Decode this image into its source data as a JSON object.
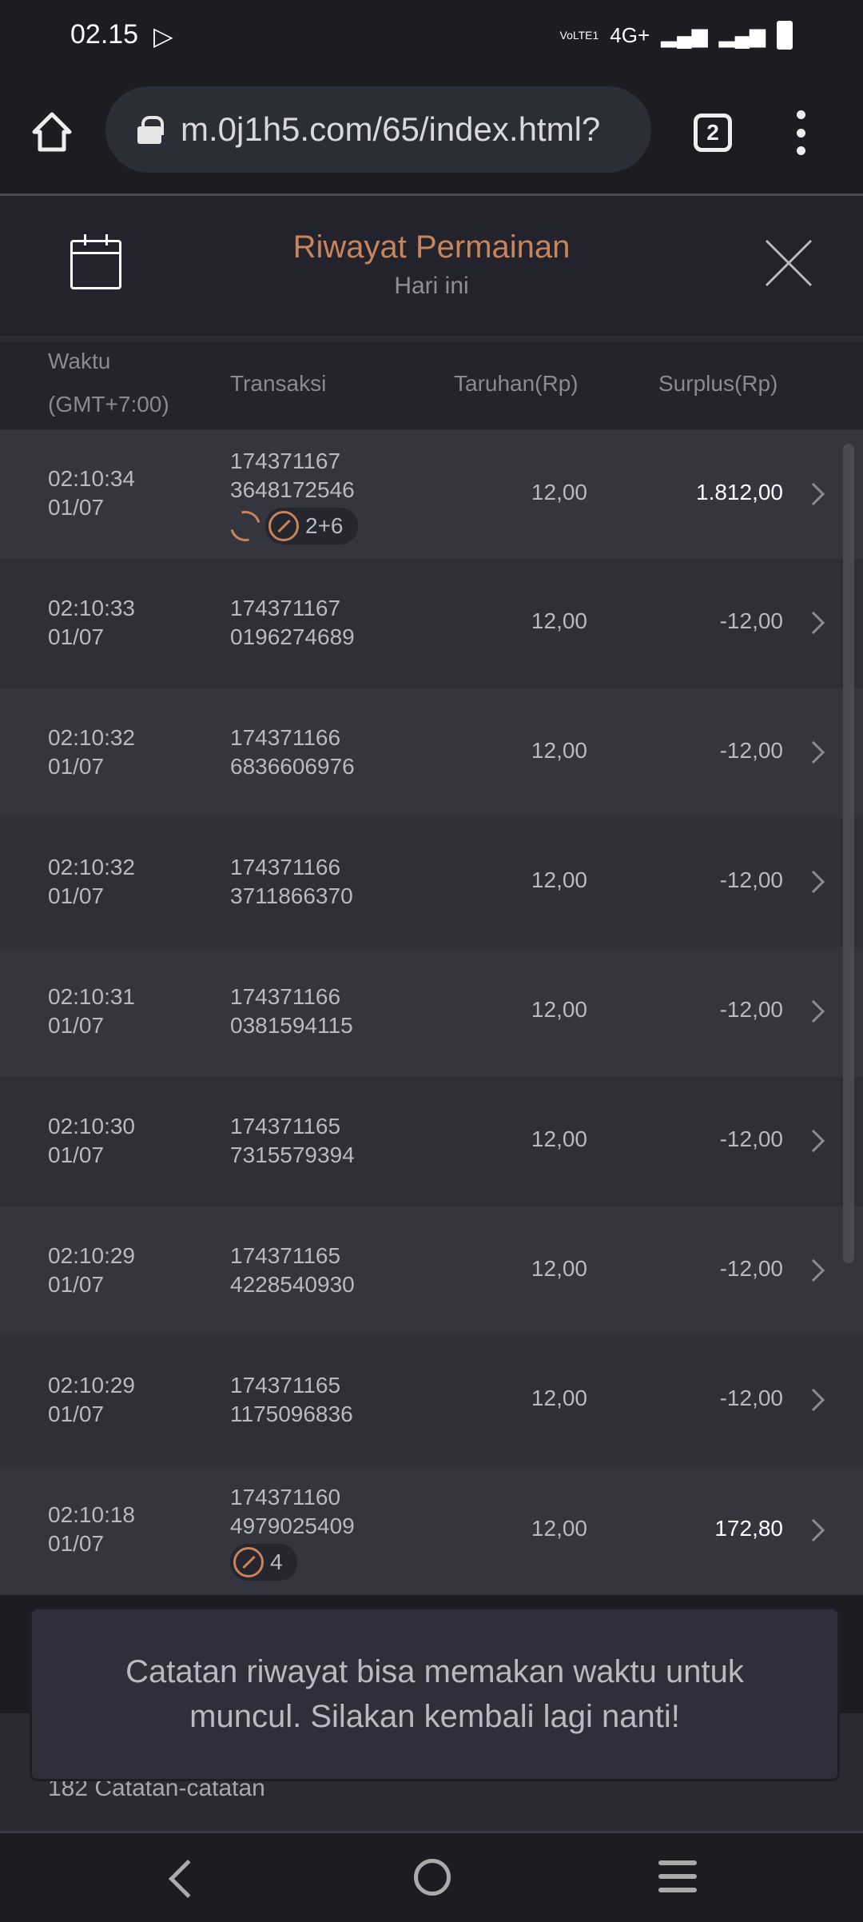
{
  "status_bar": {
    "time": "02.15",
    "network": "4G+",
    "volte": "VoLTE1"
  },
  "browser": {
    "url": "m.0j1h5.com/65/index.html?",
    "tab_count": "2"
  },
  "header": {
    "title": "Riwayat Permainan",
    "subtitle": "Hari ini"
  },
  "columns": {
    "time": "Waktu",
    "timezone": "(GMT+7:00)",
    "transaction": "Transaksi",
    "bet": "Taruhan(Rp)",
    "surplus": "Surplus(Rp)"
  },
  "rows": [
    {
      "time": "02:10:34",
      "date": "01/07",
      "tx1": "174371167",
      "tx2": "3648172546",
      "bet": "12,00",
      "surplus": "1.812,00",
      "badge": "2+6",
      "refresh": true
    },
    {
      "time": "02:10:33",
      "date": "01/07",
      "tx1": "174371167",
      "tx2": "0196274689",
      "bet": "12,00",
      "surplus": "-12,00"
    },
    {
      "time": "02:10:32",
      "date": "01/07",
      "tx1": "174371166",
      "tx2": "6836606976",
      "bet": "12,00",
      "surplus": "-12,00"
    },
    {
      "time": "02:10:32",
      "date": "01/07",
      "tx1": "174371166",
      "tx2": "3711866370",
      "bet": "12,00",
      "surplus": "-12,00"
    },
    {
      "time": "02:10:31",
      "date": "01/07",
      "tx1": "174371166",
      "tx2": "0381594115",
      "bet": "12,00",
      "surplus": "-12,00"
    },
    {
      "time": "02:10:30",
      "date": "01/07",
      "tx1": "174371165",
      "tx2": "7315579394",
      "bet": "12,00",
      "surplus": "-12,00"
    },
    {
      "time": "02:10:29",
      "date": "01/07",
      "tx1": "174371165",
      "tx2": "4228540930",
      "bet": "12,00",
      "surplus": "-12,00"
    },
    {
      "time": "02:10:29",
      "date": "01/07",
      "tx1": "174371165",
      "tx2": "1175096836",
      "bet": "12,00",
      "surplus": "-12,00"
    },
    {
      "time": "02:10:18",
      "date": "01/07",
      "tx1": "174371160",
      "tx2": "4979025409",
      "bet": "12,00",
      "surplus": "172,80",
      "badge": "4"
    }
  ],
  "footer": {
    "record_count": "182 Catatan-catatan"
  },
  "toast": {
    "message": "Catatan riwayat bisa memakan waktu untuk muncul. Silakan kembali lagi nanti!"
  },
  "colors": {
    "accent": "#c9845a",
    "background": "#23232e"
  }
}
